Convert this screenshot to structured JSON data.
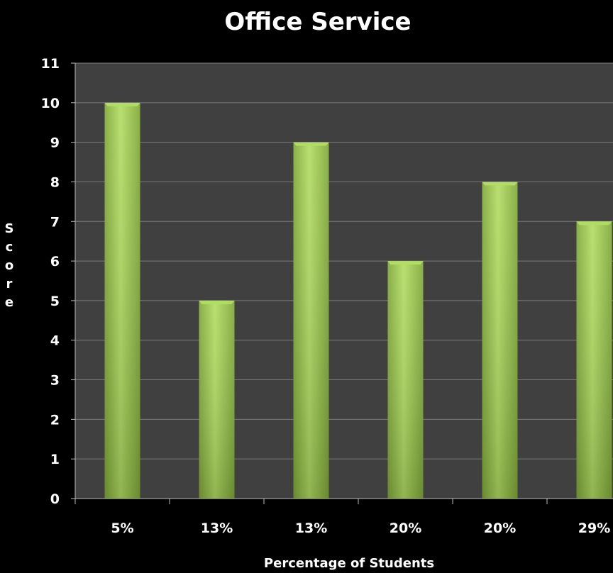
{
  "chart_data": {
    "type": "bar",
    "title": "Office Service",
    "xlabel": "Percentage of Students",
    "ylabel": "Score",
    "categories": [
      "5%",
      "13%",
      "13%",
      "20%",
      "20%",
      "29%"
    ],
    "values": [
      10,
      5,
      9,
      6,
      8,
      7
    ],
    "ylim": [
      0,
      11
    ],
    "yticks": [
      "0",
      "1",
      "2",
      "3",
      "4",
      "5",
      "6",
      "7",
      "8",
      "9",
      "10",
      "11"
    ],
    "grid": true,
    "legend": "none",
    "colors": {
      "background": "#000000",
      "plot_area": "#404040",
      "bar": "#9bcc47",
      "bar_light": "#b2dd64",
      "bar_dark": "#7fa838",
      "gridline": "#7a7a7a",
      "text": "#ffffff"
    }
  }
}
